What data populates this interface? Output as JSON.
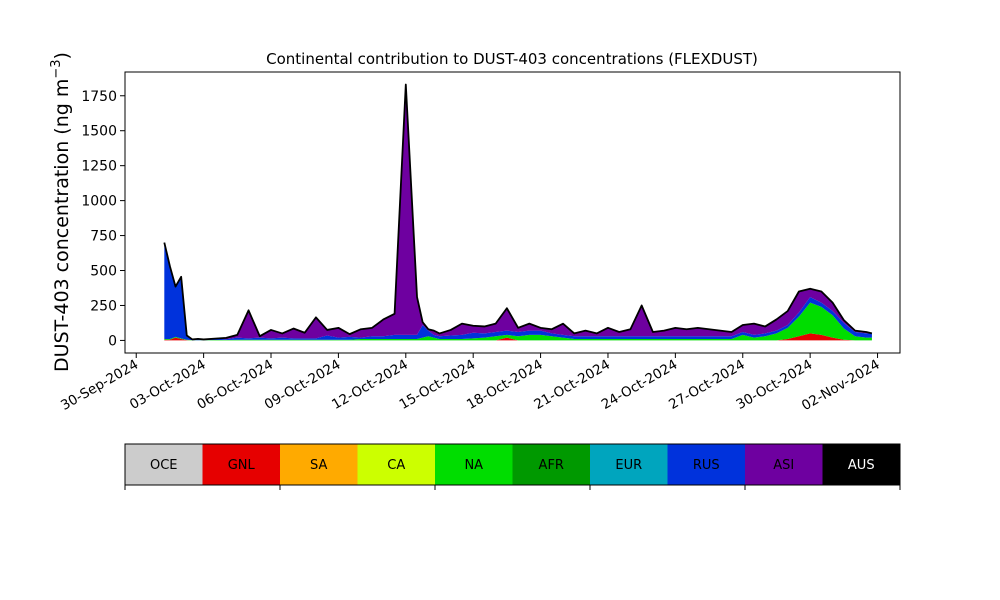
{
  "chart_data": {
    "type": "area",
    "title": "Continental contribution to DUST-403 concentrations (FLEXDUST)",
    "ylabel": "DUST-403 concentration (ng m",
    "ylabel_sup": "−3",
    "ylabel_close": ")",
    "xlabel": "",
    "stacked": true,
    "ylim": [
      -90,
      1920
    ],
    "yticks": [
      0,
      250,
      500,
      750,
      1000,
      1250,
      1500,
      1750
    ],
    "xlim": [
      "2024-09-29T12:00",
      "2024-11-03T00:00"
    ],
    "xticks": [
      "2024-09-30",
      "2024-10-03",
      "2024-10-06",
      "2024-10-09",
      "2024-10-12",
      "2024-10-15",
      "2024-10-18",
      "2024-10-21",
      "2024-10-24",
      "2024-10-27",
      "2024-10-30",
      "2024-11-02"
    ],
    "xtick_labels": [
      "30-Sep-2024",
      "03-Oct-2024",
      "06-Oct-2024",
      "09-Oct-2024",
      "12-Oct-2024",
      "15-Oct-2024",
      "18-Oct-2024",
      "21-Oct-2024",
      "24-Oct-2024",
      "27-Oct-2024",
      "30-Oct-2024",
      "02-Nov-2024"
    ],
    "grid": false,
    "legend_position": "bottom",
    "x": [
      "2024-10-01T06:00",
      "2024-10-01T12:00",
      "2024-10-01T18:00",
      "2024-10-02T00:00",
      "2024-10-02T06:00",
      "2024-10-02T12:00",
      "2024-10-02T18:00",
      "2024-10-03T00:00",
      "2024-10-03T12:00",
      "2024-10-04T00:00",
      "2024-10-04T12:00",
      "2024-10-05T00:00",
      "2024-10-05T12:00",
      "2024-10-06T00:00",
      "2024-10-06T12:00",
      "2024-10-07T00:00",
      "2024-10-07T12:00",
      "2024-10-08T00:00",
      "2024-10-08T12:00",
      "2024-10-09T00:00",
      "2024-10-09T12:00",
      "2024-10-10T00:00",
      "2024-10-10T12:00",
      "2024-10-11T00:00",
      "2024-10-11T12:00",
      "2024-10-12T00:00",
      "2024-10-12T12:00",
      "2024-10-12T18:00",
      "2024-10-13T00:00",
      "2024-10-13T06:00",
      "2024-10-13T12:00",
      "2024-10-14T00:00",
      "2024-10-14T12:00",
      "2024-10-15T00:00",
      "2024-10-15T12:00",
      "2024-10-16T00:00",
      "2024-10-16T12:00",
      "2024-10-17T00:00",
      "2024-10-17T12:00",
      "2024-10-18T00:00",
      "2024-10-18T12:00",
      "2024-10-19T00:00",
      "2024-10-19T12:00",
      "2024-10-20T00:00",
      "2024-10-20T12:00",
      "2024-10-21T00:00",
      "2024-10-21T12:00",
      "2024-10-22T00:00",
      "2024-10-22T12:00",
      "2024-10-23T00:00",
      "2024-10-23T12:00",
      "2024-10-24T00:00",
      "2024-10-24T12:00",
      "2024-10-25T00:00",
      "2024-10-25T12:00",
      "2024-10-26T00:00",
      "2024-10-26T12:00",
      "2024-10-27T00:00",
      "2024-10-27T12:00",
      "2024-10-28T00:00",
      "2024-10-28T12:00",
      "2024-10-29T00:00",
      "2024-10-29T12:00",
      "2024-10-30T00:00",
      "2024-10-30T12:00",
      "2024-10-31T00:00",
      "2024-10-31T12:00",
      "2024-11-01T00:00",
      "2024-11-01T12:00",
      "2024-11-01T18:00"
    ],
    "series": [
      {
        "name": "OCE",
        "color": "#cccccc",
        "values": [
          0,
          0,
          0,
          0,
          0,
          0,
          0,
          0,
          0,
          0,
          0,
          0,
          0,
          0,
          0,
          0,
          0,
          0,
          0,
          0,
          0,
          0,
          0,
          0,
          0,
          0,
          0,
          0,
          0,
          0,
          0,
          0,
          0,
          0,
          0,
          0,
          0,
          0,
          0,
          0,
          0,
          0,
          0,
          0,
          0,
          0,
          0,
          0,
          0,
          0,
          0,
          0,
          0,
          0,
          0,
          0,
          0,
          0,
          0,
          0,
          0,
          0,
          0,
          0,
          0,
          0,
          0,
          0,
          0,
          0
        ]
      },
      {
        "name": "GNL",
        "color": "#e60000",
        "values": [
          5,
          5,
          20,
          10,
          2,
          0,
          0,
          0,
          0,
          0,
          0,
          0,
          0,
          0,
          0,
          0,
          0,
          0,
          0,
          0,
          0,
          0,
          0,
          0,
          0,
          0,
          0,
          0,
          0,
          0,
          0,
          0,
          0,
          0,
          0,
          0,
          20,
          0,
          0,
          0,
          0,
          0,
          0,
          0,
          0,
          0,
          0,
          0,
          0,
          0,
          0,
          0,
          0,
          0,
          0,
          0,
          0,
          0,
          0,
          0,
          0,
          10,
          30,
          50,
          40,
          20,
          5,
          0,
          0,
          0
        ]
      },
      {
        "name": "SA",
        "color": "#ffaa00",
        "values": [
          0,
          0,
          0,
          0,
          0,
          0,
          0,
          0,
          0,
          0,
          0,
          0,
          0,
          0,
          0,
          0,
          0,
          0,
          0,
          0,
          0,
          0,
          0,
          0,
          0,
          0,
          0,
          0,
          0,
          0,
          0,
          0,
          0,
          0,
          0,
          0,
          0,
          0,
          0,
          0,
          0,
          0,
          0,
          0,
          0,
          0,
          0,
          0,
          0,
          0,
          0,
          0,
          0,
          0,
          0,
          0,
          0,
          0,
          0,
          0,
          0,
          0,
          0,
          0,
          0,
          0,
          0,
          0,
          0,
          0
        ]
      },
      {
        "name": "CA",
        "color": "#ccff00",
        "values": [
          0,
          0,
          0,
          0,
          0,
          0,
          0,
          0,
          0,
          0,
          0,
          0,
          0,
          0,
          0,
          0,
          0,
          0,
          0,
          0,
          0,
          0,
          0,
          0,
          0,
          0,
          0,
          0,
          0,
          0,
          0,
          0,
          0,
          0,
          0,
          0,
          0,
          0,
          0,
          0,
          0,
          0,
          0,
          0,
          0,
          0,
          0,
          0,
          0,
          0,
          0,
          0,
          0,
          0,
          0,
          0,
          0,
          0,
          0,
          0,
          0,
          0,
          0,
          0,
          0,
          0,
          0,
          0,
          0,
          0
        ]
      },
      {
        "name": "NA",
        "color": "#00dd00",
        "values": [
          5,
          5,
          5,
          5,
          3,
          2,
          1,
          2,
          3,
          3,
          5,
          5,
          5,
          5,
          5,
          5,
          5,
          5,
          5,
          5,
          5,
          10,
          10,
          10,
          10,
          10,
          10,
          20,
          30,
          20,
          10,
          10,
          10,
          15,
          20,
          30,
          20,
          30,
          40,
          40,
          30,
          20,
          10,
          10,
          10,
          10,
          10,
          10,
          10,
          10,
          10,
          10,
          10,
          10,
          10,
          10,
          10,
          40,
          20,
          30,
          50,
          80,
          140,
          220,
          200,
          160,
          80,
          30,
          20,
          20
        ]
      },
      {
        "name": "AFR",
        "color": "#009900",
        "values": [
          0,
          0,
          0,
          0,
          0,
          0,
          0,
          0,
          0,
          0,
          0,
          0,
          0,
          0,
          0,
          0,
          0,
          0,
          0,
          0,
          0,
          0,
          0,
          0,
          0,
          0,
          0,
          0,
          0,
          0,
          0,
          0,
          0,
          0,
          0,
          0,
          0,
          0,
          0,
          0,
          0,
          0,
          0,
          0,
          0,
          0,
          0,
          0,
          0,
          0,
          0,
          0,
          0,
          0,
          0,
          0,
          0,
          0,
          0,
          0,
          0,
          0,
          0,
          0,
          0,
          0,
          0,
          0,
          0,
          0
        ]
      },
      {
        "name": "EUR",
        "color": "#00a5be",
        "values": [
          0,
          0,
          0,
          0,
          0,
          0,
          0,
          0,
          0,
          0,
          0,
          0,
          0,
          0,
          0,
          0,
          0,
          0,
          0,
          0,
          0,
          0,
          0,
          0,
          0,
          0,
          0,
          0,
          0,
          0,
          0,
          0,
          0,
          0,
          0,
          0,
          0,
          0,
          0,
          0,
          0,
          0,
          0,
          0,
          0,
          0,
          0,
          0,
          0,
          0,
          0,
          0,
          0,
          0,
          0,
          0,
          0,
          0,
          0,
          0,
          0,
          0,
          0,
          0,
          0,
          0,
          0,
          0,
          0,
          0
        ]
      },
      {
        "name": "RUS",
        "color": "#0032dc",
        "values": [
          690,
          520,
          360,
          440,
          30,
          5,
          10,
          5,
          10,
          5,
          15,
          10,
          15,
          10,
          15,
          10,
          10,
          10,
          30,
          15,
          20,
          10,
          20,
          20,
          30,
          30,
          30,
          90,
          40,
          20,
          20,
          25,
          30,
          40,
          30,
          30,
          30,
          30,
          30,
          30,
          20,
          20,
          20,
          20,
          20,
          20,
          20,
          20,
          20,
          20,
          20,
          20,
          20,
          20,
          20,
          20,
          20,
          20,
          20,
          20,
          20,
          20,
          30,
          40,
          30,
          30,
          40,
          30,
          30,
          30
        ]
      },
      {
        "name": "ASI",
        "color": "#6e00a0",
        "values": [
          0,
          0,
          0,
          0,
          0,
          0,
          0,
          0,
          0,
          10,
          20,
          200,
          10,
          60,
          30,
          70,
          40,
          150,
          40,
          70,
          20,
          60,
          60,
          120,
          150,
          1790,
          270,
          20,
          10,
          30,
          20,
          40,
          80,
          50,
          50,
          60,
          160,
          30,
          50,
          20,
          30,
          80,
          20,
          40,
          20,
          60,
          30,
          50,
          220,
          30,
          40,
          60,
          50,
          60,
          50,
          40,
          30,
          50,
          80,
          50,
          80,
          100,
          150,
          60,
          80,
          60,
          20,
          10,
          10,
          0
        ]
      },
      {
        "name": "AUS",
        "color": "#000000",
        "values": [
          0,
          0,
          0,
          0,
          0,
          0,
          0,
          0,
          0,
          0,
          0,
          0,
          0,
          0,
          0,
          0,
          0,
          0,
          0,
          0,
          0,
          0,
          0,
          0,
          0,
          0,
          0,
          0,
          0,
          0,
          0,
          0,
          0,
          0,
          0,
          0,
          0,
          0,
          0,
          0,
          0,
          0,
          0,
          0,
          0,
          0,
          0,
          0,
          0,
          0,
          0,
          0,
          0,
          0,
          0,
          0,
          0,
          0,
          0,
          0,
          0,
          0,
          0,
          0,
          0,
          0,
          0,
          0,
          0,
          0
        ]
      }
    ]
  }
}
